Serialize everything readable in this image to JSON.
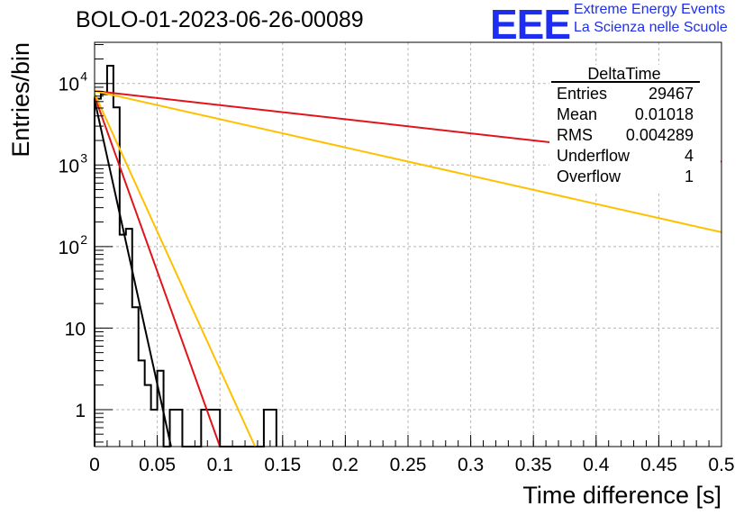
{
  "title": "BOLO-01-2023-06-26-00089",
  "logo": {
    "mark": "EEE",
    "line1": "Extreme Energy Events",
    "line2": "La Scienza nelle Scuole",
    "color": "#1e2ef0"
  },
  "stats": {
    "name": "DeltaTime",
    "rows": [
      {
        "label": "Entries",
        "value": "29467"
      },
      {
        "label": "Mean",
        "value": "0.01018"
      },
      {
        "label": "RMS",
        "value": "0.004289"
      },
      {
        "label": "Underflow",
        "value": "4"
      },
      {
        "label": "Overflow",
        "value": "1"
      }
    ]
  },
  "chart_data": {
    "type": "histogram",
    "xlabel": "Time difference [s]",
    "ylabel": "Entries/bin",
    "xlim": [
      0,
      0.5
    ],
    "ylog": true,
    "grid": true,
    "x_ticks": [
      {
        "v": 0,
        "label": "0"
      },
      {
        "v": 0.05,
        "label": "0.05"
      },
      {
        "v": 0.1,
        "label": "0.1"
      },
      {
        "v": 0.15,
        "label": "0.15"
      },
      {
        "v": 0.2,
        "label": "0.2"
      },
      {
        "v": 0.25,
        "label": "0.25"
      },
      {
        "v": 0.3,
        "label": "0.3"
      },
      {
        "v": 0.35,
        "label": "0.35"
      },
      {
        "v": 0.4,
        "label": "0.4"
      },
      {
        "v": 0.45,
        "label": "0.45"
      },
      {
        "v": 0.5,
        "label": "0.5"
      }
    ],
    "y_ticks": [
      {
        "v": 1,
        "label": "1"
      },
      {
        "v": 10,
        "label": "10"
      },
      {
        "v": 100,
        "label": "10",
        "exp": "2"
      },
      {
        "v": 1000,
        "label": "10",
        "exp": "3"
      },
      {
        "v": 10000,
        "label": "10",
        "exp": "4"
      }
    ],
    "histogram": {
      "bin_width": 0.005,
      "color": "#000000",
      "counts": [
        6500,
        7400,
        16500,
        5100,
        140,
        165,
        18,
        4,
        2,
        1,
        3,
        0,
        1,
        1,
        0,
        0,
        0,
        1,
        1,
        1,
        0,
        0,
        0,
        0,
        0,
        0,
        0,
        1,
        1
      ]
    },
    "fits": [
      {
        "color": "#000000",
        "x": [
          0,
          0.061
        ],
        "y": [
          6300,
          0.352
        ]
      },
      {
        "color": "#e0141a",
        "x": [
          0,
          0.1
        ],
        "y": [
          7000,
          0.352
        ]
      },
      {
        "color": "#ffc000",
        "x": [
          0,
          0.128
        ],
        "y": [
          7500,
          0.352
        ]
      },
      {
        "color": "#e0141a",
        "x": [
          0,
          0.5
        ],
        "y": [
          8100,
          1100
        ]
      },
      {
        "color": "#ffc000",
        "x": [
          0,
          0.5
        ],
        "y": [
          8100,
          150
        ]
      }
    ]
  }
}
